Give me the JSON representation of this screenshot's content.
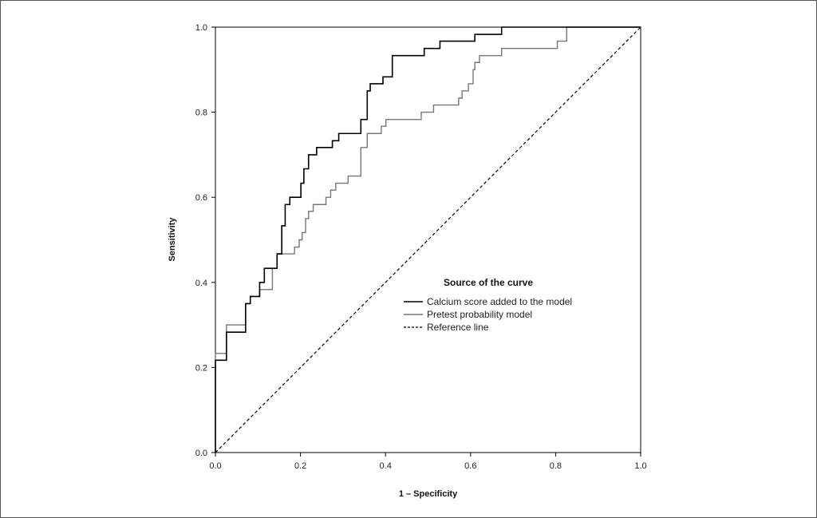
{
  "chart_data": {
    "type": "line",
    "xlabel": "1 – Specificity",
    "ylabel": "Sensitivity",
    "xlim": [
      0,
      1
    ],
    "ylim": [
      0,
      1
    ],
    "x_ticks": [
      "0.0",
      "0.2",
      "0.4",
      "0.6",
      "0.8",
      "1.0"
    ],
    "y_ticks": [
      "0.0",
      "0.2",
      "0.4",
      "0.6",
      "0.8",
      "1.0"
    ],
    "grid": false,
    "legend": {
      "title": "Source of the curve",
      "placement": "center-right"
    },
    "series": [
      {
        "name": "Calcium score added to the model",
        "color": "#000000",
        "style": "solid",
        "points": [
          [
            0,
            0
          ],
          [
            0,
            0.217
          ],
          [
            0.026,
            0.217
          ],
          [
            0.026,
            0.283
          ],
          [
            0.071,
            0.283
          ],
          [
            0.071,
            0.35
          ],
          [
            0.082,
            0.35
          ],
          [
            0.082,
            0.367
          ],
          [
            0.104,
            0.367
          ],
          [
            0.104,
            0.4
          ],
          [
            0.115,
            0.4
          ],
          [
            0.115,
            0.433
          ],
          [
            0.145,
            0.433
          ],
          [
            0.145,
            0.467
          ],
          [
            0.156,
            0.467
          ],
          [
            0.156,
            0.533
          ],
          [
            0.164,
            0.533
          ],
          [
            0.164,
            0.583
          ],
          [
            0.175,
            0.583
          ],
          [
            0.175,
            0.6
          ],
          [
            0.201,
            0.6
          ],
          [
            0.201,
            0.633
          ],
          [
            0.208,
            0.633
          ],
          [
            0.208,
            0.667
          ],
          [
            0.219,
            0.667
          ],
          [
            0.219,
            0.7
          ],
          [
            0.238,
            0.7
          ],
          [
            0.238,
            0.717
          ],
          [
            0.275,
            0.717
          ],
          [
            0.275,
            0.733
          ],
          [
            0.29,
            0.733
          ],
          [
            0.29,
            0.75
          ],
          [
            0.342,
            0.75
          ],
          [
            0.342,
            0.783
          ],
          [
            0.357,
            0.783
          ],
          [
            0.357,
            0.85
          ],
          [
            0.364,
            0.85
          ],
          [
            0.364,
            0.867
          ],
          [
            0.394,
            0.867
          ],
          [
            0.394,
            0.883
          ],
          [
            0.416,
            0.883
          ],
          [
            0.416,
            0.933
          ],
          [
            0.491,
            0.933
          ],
          [
            0.491,
            0.95
          ],
          [
            0.528,
            0.95
          ],
          [
            0.528,
            0.967
          ],
          [
            0.61,
            0.967
          ],
          [
            0.61,
            0.983
          ],
          [
            0.673,
            0.983
          ],
          [
            0.673,
            1.0
          ],
          [
            1.0,
            1.0
          ]
        ]
      },
      {
        "name": "Pretest probability model",
        "color": "#777777",
        "style": "solid",
        "points": [
          [
            0,
            0
          ],
          [
            0,
            0.233
          ],
          [
            0.026,
            0.233
          ],
          [
            0.026,
            0.3
          ],
          [
            0.071,
            0.3
          ],
          [
            0.071,
            0.35
          ],
          [
            0.082,
            0.35
          ],
          [
            0.082,
            0.367
          ],
          [
            0.104,
            0.367
          ],
          [
            0.104,
            0.383
          ],
          [
            0.134,
            0.383
          ],
          [
            0.134,
            0.433
          ],
          [
            0.145,
            0.433
          ],
          [
            0.145,
            0.467
          ],
          [
            0.186,
            0.467
          ],
          [
            0.186,
            0.483
          ],
          [
            0.197,
            0.483
          ],
          [
            0.197,
            0.5
          ],
          [
            0.204,
            0.5
          ],
          [
            0.204,
            0.517
          ],
          [
            0.212,
            0.517
          ],
          [
            0.212,
            0.55
          ],
          [
            0.219,
            0.55
          ],
          [
            0.219,
            0.567
          ],
          [
            0.23,
            0.567
          ],
          [
            0.23,
            0.583
          ],
          [
            0.26,
            0.583
          ],
          [
            0.26,
            0.6
          ],
          [
            0.271,
            0.6
          ],
          [
            0.271,
            0.617
          ],
          [
            0.283,
            0.617
          ],
          [
            0.283,
            0.633
          ],
          [
            0.312,
            0.633
          ],
          [
            0.312,
            0.65
          ],
          [
            0.342,
            0.65
          ],
          [
            0.342,
            0.717
          ],
          [
            0.357,
            0.717
          ],
          [
            0.357,
            0.75
          ],
          [
            0.39,
            0.75
          ],
          [
            0.39,
            0.767
          ],
          [
            0.401,
            0.767
          ],
          [
            0.401,
            0.783
          ],
          [
            0.484,
            0.783
          ],
          [
            0.484,
            0.8
          ],
          [
            0.513,
            0.8
          ],
          [
            0.513,
            0.817
          ],
          [
            0.572,
            0.817
          ],
          [
            0.572,
            0.833
          ],
          [
            0.58,
            0.833
          ],
          [
            0.58,
            0.85
          ],
          [
            0.595,
            0.85
          ],
          [
            0.595,
            0.867
          ],
          [
            0.606,
            0.867
          ],
          [
            0.606,
            0.9
          ],
          [
            0.61,
            0.9
          ],
          [
            0.61,
            0.917
          ],
          [
            0.621,
            0.917
          ],
          [
            0.621,
            0.933
          ],
          [
            0.673,
            0.933
          ],
          [
            0.673,
            0.95
          ],
          [
            0.804,
            0.95
          ],
          [
            0.804,
            0.967
          ],
          [
            0.826,
            0.967
          ],
          [
            0.826,
            1.0
          ],
          [
            1.0,
            1.0
          ]
        ]
      },
      {
        "name": "Reference line",
        "color": "#000000",
        "style": "dashed",
        "points": [
          [
            0,
            0
          ],
          [
            1,
            1
          ]
        ]
      }
    ]
  }
}
